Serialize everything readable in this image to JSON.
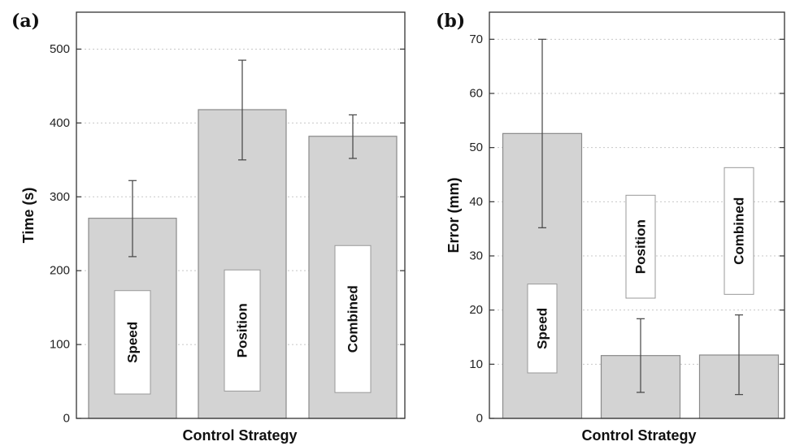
{
  "chart_data": [
    {
      "panel": "(a)",
      "type": "bar",
      "categories": [
        "Speed",
        "Position",
        "Combined"
      ],
      "values": [
        271,
        418,
        382
      ],
      "error_low": [
        219,
        350,
        352
      ],
      "error_high": [
        322,
        485,
        411
      ],
      "xlabel": "Control Strategy",
      "ylabel": "Time (s)",
      "ylim": [
        0,
        550
      ],
      "yticks": [
        0,
        100,
        200,
        300,
        400,
        500
      ],
      "grid": "horizontal dotted",
      "bar_color": "#d3d3d3",
      "bar_labels": [
        {
          "text": "Speed",
          "y_low": 33,
          "y_high": 173
        },
        {
          "text": "Position",
          "y_low": 37,
          "y_high": 201
        },
        {
          "text": "Combined",
          "y_low": 35,
          "y_high": 234
        }
      ]
    },
    {
      "panel": "(b)",
      "type": "bar",
      "categories": [
        "Speed",
        "Position",
        "Combined"
      ],
      "values": [
        52.6,
        11.6,
        11.7
      ],
      "error_low": [
        35.2,
        4.8,
        4.4
      ],
      "error_high": [
        70.0,
        18.4,
        19.1
      ],
      "xlabel": "Control Strategy",
      "ylabel": "Error (mm)",
      "ylim": [
        0,
        75
      ],
      "yticks": [
        0,
        10,
        20,
        30,
        40,
        50,
        60,
        70
      ],
      "grid": "horizontal dotted",
      "bar_color": "#d3d3d3",
      "bar_labels": [
        {
          "text": "Speed",
          "y_low": 8.4,
          "y_high": 24.8
        },
        {
          "text": "Position",
          "y_low": 22.2,
          "y_high": 41.2
        },
        {
          "text": "Combined",
          "y_low": 22.9,
          "y_high": 46.3
        }
      ]
    }
  ]
}
